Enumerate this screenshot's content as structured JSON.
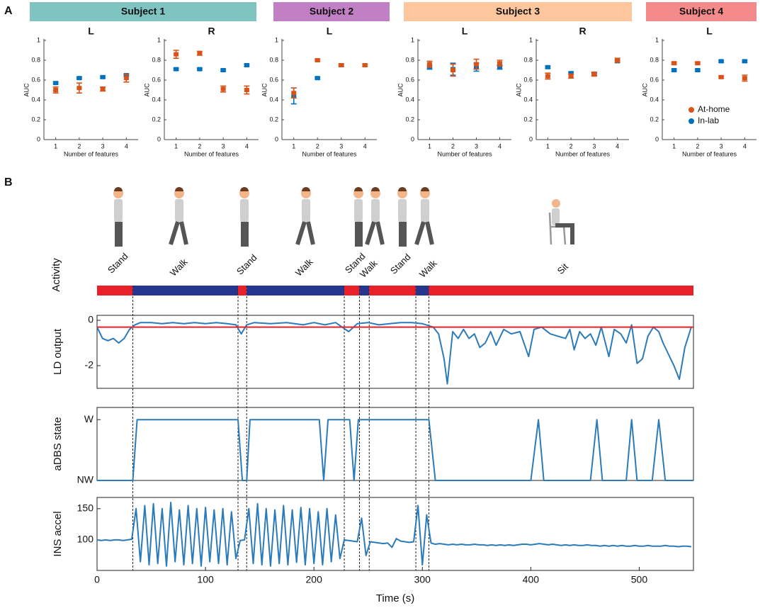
{
  "panels": {
    "a": "A",
    "b": "B"
  },
  "subjects": [
    {
      "name": "Subject 1",
      "color": "#7fc4c0"
    },
    {
      "name": "Subject 2",
      "color": "#c17fc4"
    },
    {
      "name": "Subject 3",
      "color": "#fdc69c"
    },
    {
      "name": "Subject 4",
      "color": "#f58a8b"
    }
  ],
  "chart_data": [
    {
      "type": "scatter",
      "title": "L",
      "x": [
        1,
        2,
        3,
        4
      ],
      "xlim": [
        0.5,
        4.5
      ],
      "xticks": [
        1,
        2,
        3,
        4
      ],
      "ylim": [
        0,
        1
      ],
      "yticks": [
        0,
        0.2,
        0.4,
        0.6,
        0.8,
        1
      ],
      "xlabel": "Number of features",
      "ylabel": "AUC",
      "series": [
        {
          "color": "#d95319",
          "values": [
            0.5,
            0.52,
            0.51,
            0.62
          ],
          "errors": [
            0.03,
            0.05,
            0.02,
            0.04
          ]
        },
        {
          "color": "#0072bd",
          "values": [
            0.57,
            0.62,
            0.63,
            0.65
          ],
          "errors": [
            0.01,
            0.01,
            0.01,
            0.01
          ]
        }
      ]
    },
    {
      "type": "scatter",
      "title": "R",
      "x": [
        1,
        2,
        3,
        4
      ],
      "xlim": [
        0.5,
        4.5
      ],
      "xticks": [
        1,
        2,
        3,
        4
      ],
      "ylim": [
        0,
        1
      ],
      "yticks": [
        0,
        0.2,
        0.4,
        0.6,
        0.8,
        1
      ],
      "xlabel": "Number of features",
      "ylabel": "AUC",
      "series": [
        {
          "color": "#d95319",
          "values": [
            0.86,
            0.87,
            0.51,
            0.5
          ],
          "errors": [
            0.04,
            0.02,
            0.03,
            0.04
          ]
        },
        {
          "color": "#0072bd",
          "values": [
            0.71,
            0.71,
            0.7,
            0.75
          ],
          "errors": [
            0.01,
            0.01,
            0.01,
            0.01
          ]
        }
      ]
    },
    {
      "type": "scatter",
      "title": "L",
      "x": [
        1,
        2,
        3,
        4
      ],
      "xlim": [
        0.5,
        4.5
      ],
      "xticks": [
        1,
        2,
        3,
        4
      ],
      "ylim": [
        0,
        1
      ],
      "yticks": [
        0,
        0.2,
        0.4,
        0.6,
        0.8,
        1
      ],
      "xlabel": "Number of features",
      "ylabel": "AUC",
      "series": [
        {
          "color": "#d95319",
          "values": [
            0.47,
            0.8,
            0.75,
            0.75
          ],
          "errors": [
            0.05,
            0.01,
            0.01,
            0.01
          ]
        },
        {
          "color": "#0072bd",
          "values": [
            0.44,
            0.62,
            0.75,
            null
          ],
          "errors": [
            0.08,
            0.01,
            0.01,
            null
          ]
        }
      ]
    },
    {
      "type": "scatter",
      "title": "L",
      "x": [
        1,
        2,
        3,
        4
      ],
      "xlim": [
        0.5,
        4.5
      ],
      "xticks": [
        1,
        2,
        3,
        4
      ],
      "ylim": [
        0,
        1
      ],
      "yticks": [
        0,
        0.2,
        0.4,
        0.6,
        0.8,
        1
      ],
      "xlabel": "Number of features",
      "ylabel": "AUC",
      "series": [
        {
          "color": "#d95319",
          "values": [
            0.76,
            0.7,
            0.76,
            0.77
          ],
          "errors": [
            0.03,
            0.06,
            0.05,
            0.03
          ]
        },
        {
          "color": "#0072bd",
          "values": [
            0.73,
            0.71,
            0.73,
            0.73
          ],
          "errors": [
            0.02,
            0.06,
            0.04,
            0.02
          ]
        }
      ]
    },
    {
      "type": "scatter",
      "title": "R",
      "x": [
        1,
        2,
        3,
        4
      ],
      "xlim": [
        0.5,
        4.5
      ],
      "xticks": [
        1,
        2,
        3,
        4
      ],
      "ylim": [
        0,
        1
      ],
      "yticks": [
        0,
        0.2,
        0.4,
        0.6,
        0.8,
        1
      ],
      "xlabel": "Number of features",
      "ylabel": "AUC",
      "series": [
        {
          "color": "#d95319",
          "values": [
            0.64,
            0.64,
            0.66,
            0.8
          ],
          "errors": [
            0.03,
            0.02,
            0.02,
            0.02
          ]
        },
        {
          "color": "#0072bd",
          "values": [
            0.73,
            0.67,
            0.66,
            0.79
          ],
          "errors": [
            0.01,
            0.01,
            0.01,
            0.01
          ]
        }
      ]
    },
    {
      "type": "scatter",
      "title": "L",
      "x": [
        1,
        2,
        3,
        4
      ],
      "xlim": [
        0.5,
        4.5
      ],
      "xticks": [
        1,
        2,
        3,
        4
      ],
      "ylim": [
        0,
        1
      ],
      "yticks": [
        0,
        0.2,
        0.4,
        0.6,
        0.8,
        1
      ],
      "xlabel": "Number of features",
      "ylabel": "AUC",
      "legend": "lower right",
      "series": [
        {
          "name": "At-home",
          "color": "#d95319",
          "values": [
            0.77,
            0.77,
            0.63,
            0.62
          ],
          "errors": [
            0.01,
            0.01,
            0.01,
            0.03
          ]
        },
        {
          "name": "In-lab",
          "color": "#0072bd",
          "values": [
            0.7,
            0.7,
            0.79,
            0.79
          ],
          "errors": [
            0.01,
            0.01,
            0.01,
            0.01
          ]
        }
      ]
    },
    {
      "type": "timeline",
      "ylabel": "Activity",
      "xlim": [
        0,
        550
      ],
      "segments": [
        {
          "label": "Stand",
          "start": 0,
          "end": 33,
          "color": "#e8202a"
        },
        {
          "label": "Walk",
          "start": 33,
          "end": 130,
          "color": "#26368f"
        },
        {
          "label": "Stand",
          "start": 130,
          "end": 138,
          "color": "#e8202a"
        },
        {
          "label": "Walk",
          "start": 138,
          "end": 228,
          "color": "#26368f"
        },
        {
          "label": "Stand",
          "start": 228,
          "end": 242,
          "color": "#e8202a"
        },
        {
          "label": "Walk",
          "start": 242,
          "end": 251,
          "color": "#26368f"
        },
        {
          "label": "Stand",
          "start": 251,
          "end": 294,
          "color": "#e8202a"
        },
        {
          "label": "Walk",
          "start": 294,
          "end": 306,
          "color": "#26368f"
        },
        {
          "label": "Sit",
          "start": 306,
          "end": 550,
          "color": "#e8202a"
        }
      ]
    },
    {
      "type": "line",
      "ylabel": "LD output",
      "xlim": [
        0,
        550
      ],
      "ylim": [
        -3,
        0.22
      ],
      "yticks": [
        0,
        -2
      ],
      "color": "#2b7bba",
      "threshold": -0.3,
      "threshold_color": "#e8202a",
      "x": [
        0,
        5,
        10,
        15,
        20,
        25,
        30,
        35,
        40,
        50,
        60,
        70,
        80,
        90,
        100,
        110,
        120,
        128,
        133,
        138,
        145,
        160,
        175,
        190,
        200,
        210,
        220,
        232,
        240,
        250,
        260,
        270,
        280,
        290,
        300,
        310,
        315,
        320,
        323,
        328,
        333,
        338,
        343,
        348,
        353,
        358,
        363,
        368,
        375,
        382,
        390,
        398,
        403,
        410,
        418,
        425,
        432,
        436,
        440,
        445,
        450,
        455,
        460,
        465,
        472,
        477,
        483,
        488,
        493,
        498,
        503,
        508,
        513,
        518,
        522,
        527,
        532,
        537,
        542,
        548
      ],
      "values": [
        -0.3,
        -0.8,
        -0.9,
        -0.8,
        -1.0,
        -0.8,
        -0.4,
        -0.2,
        -0.1,
        -0.1,
        -0.15,
        -0.1,
        -0.15,
        -0.1,
        -0.15,
        -0.1,
        -0.15,
        -0.2,
        -0.6,
        -0.2,
        -0.1,
        -0.15,
        -0.1,
        -0.2,
        -0.1,
        -0.2,
        -0.1,
        -0.5,
        -0.15,
        -0.1,
        -0.2,
        -0.15,
        -0.1,
        -0.1,
        -0.15,
        -0.3,
        -0.6,
        -1.7,
        -2.8,
        -0.5,
        -0.8,
        -0.4,
        -0.8,
        -0.6,
        -1.2,
        -1.0,
        -0.5,
        -1.1,
        -0.4,
        -0.6,
        -0.5,
        -1.6,
        -0.4,
        -0.3,
        -0.6,
        -0.7,
        -0.8,
        -0.4,
        -1.3,
        -0.5,
        -0.8,
        -0.6,
        -1.1,
        -0.3,
        -1.6,
        -0.4,
        -0.6,
        -1.0,
        -0.2,
        -1.9,
        -1.7,
        -0.7,
        -0.3,
        -0.5,
        -1.0,
        -1.5,
        -2.0,
        -2.6,
        -1.2,
        -0.3
      ]
    },
    {
      "type": "line",
      "ylabel": "aDBS state",
      "xlim": [
        0,
        550
      ],
      "ylim": [
        0,
        1.2
      ],
      "yticks": [
        {
          "value": 1,
          "label": "W"
        },
        {
          "value": 0,
          "label": "NW"
        }
      ],
      "color": "#2b7bba",
      "x": [
        0,
        33,
        37,
        130,
        134,
        138,
        141,
        205,
        209,
        213,
        233,
        237,
        241,
        306,
        312,
        400,
        407,
        412,
        455,
        461,
        466,
        488,
        493,
        498,
        512,
        518,
        524,
        550
      ],
      "values": [
        0,
        0,
        1,
        1,
        0,
        0,
        1,
        1,
        0,
        1,
        1,
        0,
        1,
        1,
        0,
        0,
        1,
        0,
        0,
        1,
        0,
        0,
        1,
        0,
        0,
        1,
        0,
        0
      ]
    },
    {
      "type": "line",
      "ylabel": "INS accel",
      "xlabel": "Time (s)",
      "xlim": [
        0,
        550
      ],
      "xticks": [
        0,
        100,
        200,
        300,
        400,
        500
      ],
      "ylim": [
        51,
        168
      ],
      "yticks": [
        100,
        150
      ],
      "color": "#2b7bba",
      "x": [
        0,
        4,
        8,
        12,
        16,
        20,
        24,
        28,
        32,
        36,
        40,
        44,
        48,
        52,
        56,
        60,
        64,
        68,
        72,
        76,
        80,
        84,
        88,
        92,
        96,
        100,
        104,
        108,
        112,
        116,
        120,
        124,
        128,
        132,
        136,
        140,
        144,
        148,
        152,
        156,
        160,
        164,
        168,
        172,
        176,
        180,
        184,
        188,
        192,
        196,
        200,
        204,
        208,
        212,
        216,
        220,
        224,
        228,
        232,
        236,
        240,
        244,
        248,
        252,
        256,
        260,
        264,
        268,
        272,
        276,
        280,
        284,
        288,
        292,
        296,
        300,
        304,
        308,
        312,
        316,
        320,
        324,
        328,
        332,
        336,
        340,
        344,
        348,
        352,
        356,
        360,
        364,
        368,
        372,
        376,
        380,
        384,
        388,
        392,
        396,
        400,
        404,
        408,
        412,
        416,
        420,
        424,
        428,
        432,
        436,
        440,
        444,
        448,
        452,
        456,
        460,
        464,
        468,
        472,
        476,
        480,
        484,
        488,
        492,
        496,
        500,
        504,
        508,
        512,
        516,
        520,
        524,
        528,
        532,
        536,
        540,
        544,
        548
      ],
      "values": [
        100,
        99,
        100,
        99,
        100,
        100,
        99,
        100,
        101,
        150,
        65,
        155,
        60,
        158,
        62,
        150,
        58,
        160,
        65,
        148,
        60,
        155,
        62,
        150,
        58,
        152,
        65,
        148,
        62,
        150,
        60,
        145,
        70,
        99,
        100,
        150,
        62,
        158,
        60,
        150,
        58,
        148,
        62,
        155,
        60,
        148,
        64,
        152,
        60,
        150,
        62,
        145,
        60,
        150,
        65,
        140,
        70,
        100,
        99,
        98,
        97,
        135,
        75,
        97,
        96,
        95,
        94,
        95,
        88,
        102,
        98,
        97,
        96,
        97,
        155,
        60,
        140,
        95,
        93,
        94,
        93,
        92,
        93,
        92,
        93,
        92,
        92,
        93,
        92,
        92,
        91,
        92,
        91,
        92,
        91,
        92,
        91,
        92,
        93,
        93,
        92,
        93,
        94,
        93,
        92,
        93,
        92,
        91,
        92,
        91,
        92,
        91,
        91,
        92,
        91,
        91,
        90,
        91,
        90,
        91,
        90,
        91,
        90,
        90,
        91,
        90,
        90,
        91,
        90,
        90,
        90,
        91,
        90,
        90,
        89,
        90,
        90,
        89
      ]
    }
  ]
}
